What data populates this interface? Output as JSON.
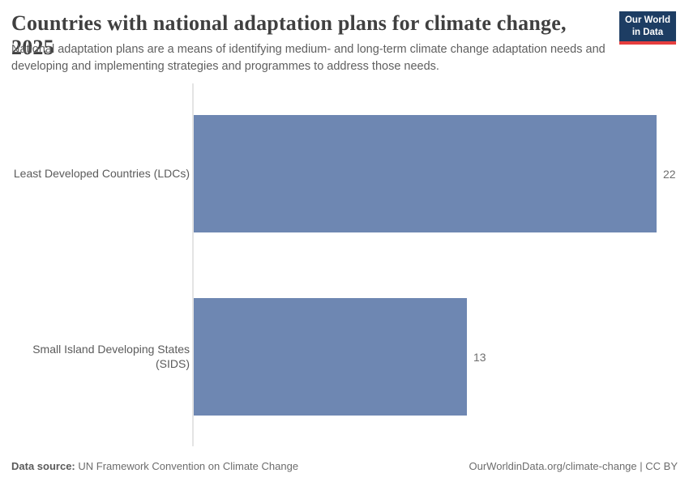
{
  "header": {
    "title": "Countries with national adaptation plans for climate change, 2025",
    "subtitle": "National adaptation plans are a means of identifying medium- and long-term climate change adaptation needs and developing and implementing strategies and programmes to address those needs.",
    "logo_line1": "Our World",
    "logo_line2": "in Data"
  },
  "chart_data": {
    "type": "bar",
    "orientation": "horizontal",
    "title": "Countries with national adaptation plans for climate change, 2025",
    "categories": [
      "Least Developed Countries (LDCs)",
      "Small Island Developing States (SIDS)"
    ],
    "values": [
      22,
      13
    ],
    "xlabel": "",
    "ylabel": "",
    "xlim": [
      0,
      22
    ],
    "grid": false,
    "legend": "none",
    "value_label_position": "end-of-bar"
  },
  "footer": {
    "data_source_label": "Data source:",
    "data_source_value": "UN Framework Convention on Climate Change",
    "link_text": "OurWorldinData.org/climate-change",
    "separator": " | ",
    "license_text": "CC BY"
  },
  "colors": {
    "bar": "#6e87b2",
    "logo_background": "#1d3d63",
    "logo_accent": "#e63e3e",
    "axis_line": "#e4e4e4",
    "title_text": "#404040",
    "subtitle_text": "#5f5f5f",
    "category_label_text": "#5b5b5b",
    "value_label_text": "#6e6e6e"
  }
}
